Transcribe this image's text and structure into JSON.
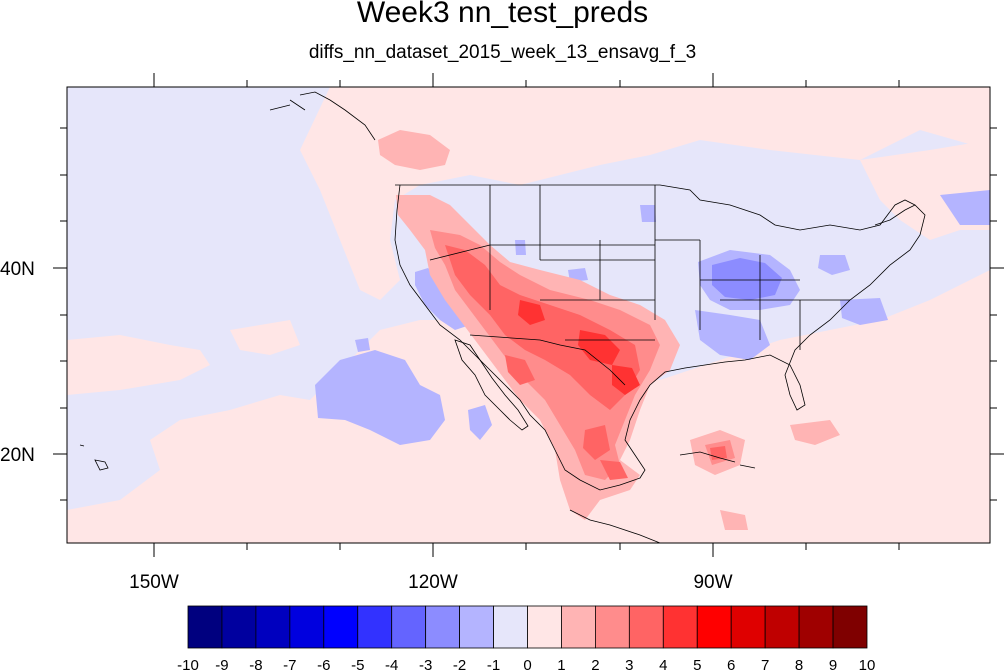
{
  "title": "Week3 nn_test_preds",
  "subtitle": "diffs_nn_dataset_2015_week_13_ensavg_f_3",
  "map": {
    "projection": "cylindrical-equidistant",
    "lon_range": [
      -159.5,
      -49.5
    ],
    "lat_range": [
      11,
      59
    ],
    "background_value_band": "-1 to 0",
    "lon_ticks": [
      "150W",
      "120W",
      "90W"
    ],
    "lat_ticks": [
      "40N",
      "20N"
    ]
  },
  "colorbar": {
    "labels": [
      "-10",
      "-9",
      "-8",
      "-7",
      "-6",
      "-5",
      "-4",
      "-3",
      "-2",
      "-1",
      "0",
      "1",
      "2",
      "3",
      "4",
      "5",
      "6",
      "7",
      "8",
      "9",
      "10"
    ],
    "colors": [
      "#00007f",
      "#00009f",
      "#0000bf",
      "#0000df",
      "#0000ff",
      "#3232ff",
      "#6464ff",
      "#8c8cff",
      "#b4b4ff",
      "#e6e6fa",
      "#ffe6e6",
      "#ffb4b4",
      "#ff8c8c",
      "#ff6464",
      "#ff3232",
      "#ff0000",
      "#df0000",
      "#bf0000",
      "#9f0000",
      "#7f0000"
    ]
  },
  "colors": {
    "ocean_background": "#e6e6fa",
    "outline": "#000000"
  }
}
